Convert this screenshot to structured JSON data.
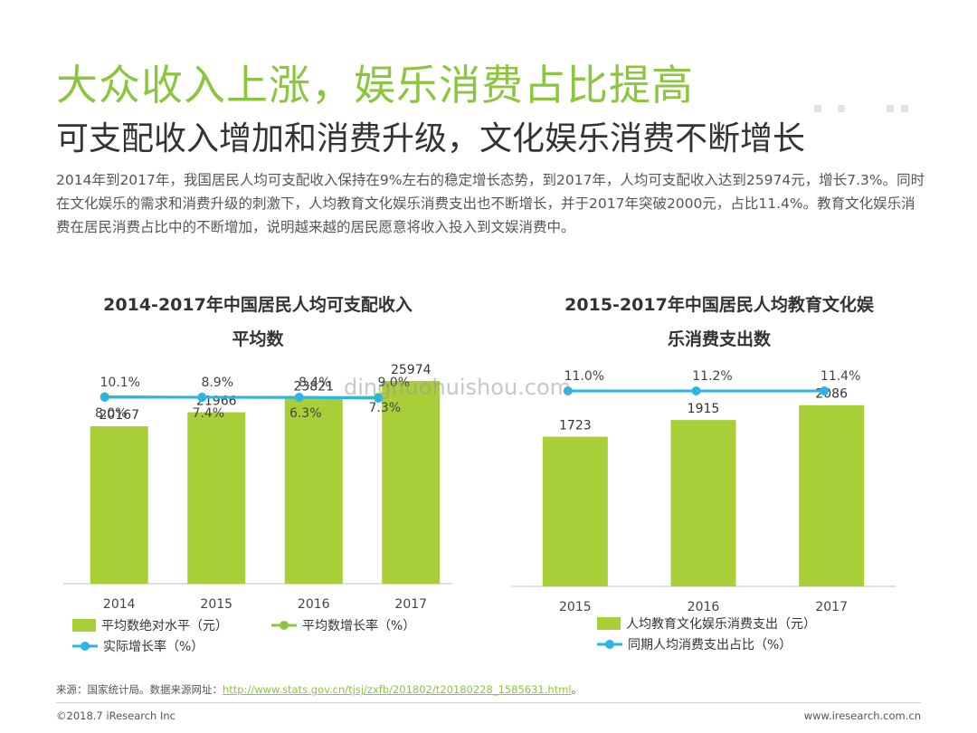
{
  "header": {
    "title": "大众收入上涨，娱乐消费占比提高",
    "subtitle": "可支配收入增加和消费升级，文化娱乐消费不断增长",
    "body": "2014年到2017年，我国居民人均可支配收入保持在9%左右的稳定增长态势，到2017年，人均可支配收入达到25974元，增长7.3%。同时在文化娱乐的需求和消费升级的刺激下，人均教育文化娱乐消费支出也不断增长，并于2017年突破2000元，占比11.4%。教育文化娱乐消费在居民消费占比中的不断增加，说明越来越的居民愿意将收入投入到文娱消费中。"
  },
  "watermark": "dingnuohuishou.com",
  "colors": {
    "accent": "#8cc63f",
    "bar": "#a9cf38",
    "line": "#29b6e6",
    "axis": "#bfbfbf"
  },
  "chart_data": [
    {
      "type": "bar",
      "title_line1": "2014-2017年中国居民人均可支配收入",
      "title_line2": "平均数",
      "categories": [
        "2014",
        "2015",
        "2016",
        "2017"
      ],
      "series": [
        {
          "name": "平均数绝对水平（元）",
          "type": "bar",
          "values": [
            20167,
            21966,
            23821,
            25974
          ],
          "labels": [
            "20167",
            "21966",
            "23821",
            "25974"
          ]
        },
        {
          "name": "平均数增长率（%）",
          "type": "line",
          "values": [
            10.1,
            8.9,
            8.4,
            9.0
          ],
          "labels": [
            "10.1%",
            "8.9%",
            "8.4%",
            "9.0%"
          ]
        },
        {
          "name": "实际增长率（%）",
          "type": "line",
          "values": [
            8.0,
            7.4,
            6.3,
            7.3
          ],
          "labels": [
            "8.0%",
            "7.4%",
            "6.3%",
            "7.3%"
          ]
        }
      ],
      "ylim": [
        0,
        40000
      ]
    },
    {
      "type": "bar",
      "title_line1": "2015-2017年中国居民人均教育文化娱",
      "title_line2": "乐消费支出数",
      "categories": [
        "2015",
        "2016",
        "2017"
      ],
      "series": [
        {
          "name": "人均教育文化娱乐消费支出（元）",
          "type": "bar",
          "values": [
            1723,
            1915,
            2086
          ],
          "labels": [
            "1723",
            "1915",
            "2086"
          ]
        },
        {
          "name": "同期人均消费支出占比（%）",
          "type": "line",
          "values": [
            11.0,
            11.2,
            11.4
          ],
          "labels": [
            "11.0%",
            "11.2%",
            "11.4%"
          ]
        }
      ],
      "ylim": [
        0,
        3000
      ]
    }
  ],
  "footer": {
    "source_prefix": "来源：国家统计局。数据来源网址：",
    "source_url": "http://www.stats.gov.cn/tjsj/zxfb/201802/t20180228_1585631.html",
    "source_suffix": "。",
    "copyright": "©2018.7 iResearch Inc",
    "site": "www.iresearch.com.cn"
  }
}
